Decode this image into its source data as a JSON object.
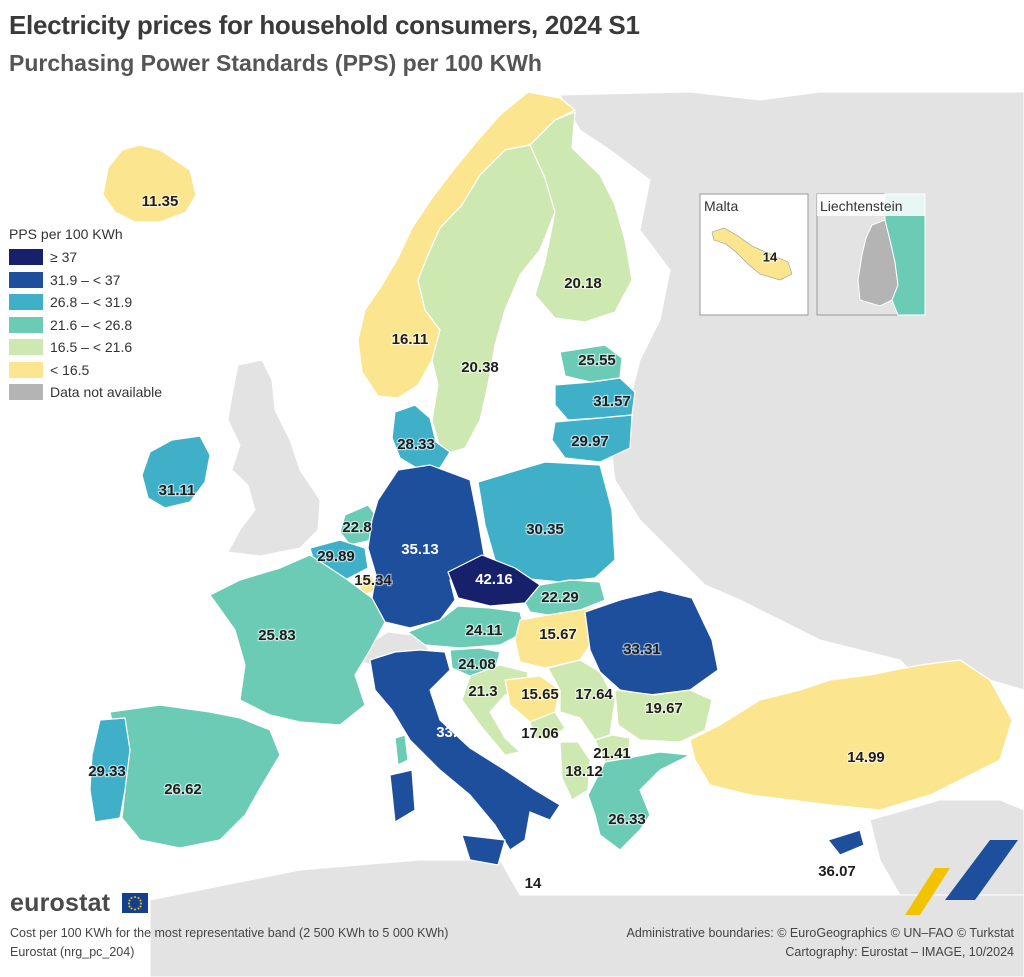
{
  "title": "Electricity prices for household consumers, 2024 S1",
  "subtitle": "Purchasing Power Standards (PPS) per 100 KWh",
  "legend": {
    "title": "PPS per 100 KWh",
    "items": [
      {
        "label": "≥ 37",
        "color": "#17216b"
      },
      {
        "label": "31.9 – < 37",
        "color": "#1e4f9c"
      },
      {
        "label": "26.8 – < 31.9",
        "color": "#40b0c8"
      },
      {
        "label": "21.6 – < 26.8",
        "color": "#6bcbb5"
      },
      {
        "label": "16.5 – < 21.6",
        "color": "#cde8b0"
      },
      {
        "label": "< 16.5",
        "color": "#fbe58f"
      },
      {
        "label": "Data not available",
        "color": "#b4b4b4"
      }
    ]
  },
  "colors": {
    "background": "#ffffff",
    "other_land": "#e3e3e3",
    "no_data": "#b4b4b4",
    "border": "#ffffff"
  },
  "regions": [
    {
      "id": "iceland",
      "value": "11.35",
      "class": "< 16.5"
    },
    {
      "id": "norway",
      "value": "16.11",
      "class": "< 16.5"
    },
    {
      "id": "sweden",
      "value": "20.38",
      "class": "16.5 – < 21.6"
    },
    {
      "id": "finland",
      "value": "20.18",
      "class": "16.5 – < 21.6"
    },
    {
      "id": "estonia",
      "value": "25.55",
      "class": "21.6 – < 26.8"
    },
    {
      "id": "latvia",
      "value": "31.57",
      "class": "26.8 – < 31.9"
    },
    {
      "id": "lithuania",
      "value": "29.97",
      "class": "26.8 – < 31.9"
    },
    {
      "id": "denmark",
      "value": "28.33",
      "class": "26.8 – < 31.9"
    },
    {
      "id": "ireland",
      "value": "31.11",
      "class": "26.8 – < 31.9"
    },
    {
      "id": "netherlands",
      "value": "22.8",
      "class": "21.6 – < 26.8"
    },
    {
      "id": "belgium",
      "value": "29.89",
      "class": "26.8 – < 31.9"
    },
    {
      "id": "luxembourg",
      "value": "15.34",
      "class": "< 16.5"
    },
    {
      "id": "germany",
      "value": "35.13",
      "class": "31.9 – < 37"
    },
    {
      "id": "poland",
      "value": "30.35",
      "class": "26.8 – < 31.9"
    },
    {
      "id": "czechia",
      "value": "42.16",
      "class": "≥ 37"
    },
    {
      "id": "slovakia",
      "value": "22.29",
      "class": "21.6 – < 26.8"
    },
    {
      "id": "austria",
      "value": "24.11",
      "class": "21.6 – < 26.8"
    },
    {
      "id": "hungary",
      "value": "15.67",
      "class": "< 16.5"
    },
    {
      "id": "romania",
      "value": "33.31",
      "class": "31.9 – < 37"
    },
    {
      "id": "slovenia",
      "value": "24.08",
      "class": "21.6 – < 26.8"
    },
    {
      "id": "croatia",
      "value": "21.3",
      "class": "16.5 – < 21.6"
    },
    {
      "id": "bosnia",
      "value": "15.65",
      "class": "< 16.5"
    },
    {
      "id": "serbia",
      "value": "17.64",
      "class": "16.5 – < 21.6"
    },
    {
      "id": "bulgaria",
      "value": "19.67",
      "class": "16.5 – < 21.6"
    },
    {
      "id": "montenegro",
      "value": "17.06",
      "class": "16.5 – < 21.6"
    },
    {
      "id": "north-macedonia",
      "value": "21.41",
      "class": "16.5 – < 21.6"
    },
    {
      "id": "albania",
      "value": "18.12",
      "class": "16.5 – < 21.6"
    },
    {
      "id": "greece",
      "value": "26.33",
      "class": "21.6 – < 26.8"
    },
    {
      "id": "turkey",
      "value": "14.99",
      "class": "< 16.5"
    },
    {
      "id": "france",
      "value": "25.83",
      "class": "21.6 – < 26.8"
    },
    {
      "id": "spain",
      "value": "26.62",
      "class": "21.6 – < 26.8"
    },
    {
      "id": "portugal",
      "value": "29.33",
      "class": "26.8 – < 31.9"
    },
    {
      "id": "italy",
      "value": "33.91",
      "class": "31.9 – < 37"
    },
    {
      "id": "malta-value",
      "value": "14",
      "class": "< 16.5"
    },
    {
      "id": "cyprus",
      "value": "36.07",
      "class": "31.9 – < 37"
    }
  ],
  "insets": {
    "malta": {
      "title": "Malta",
      "value": "14"
    },
    "liechtenstein": {
      "title": "Liechtenstein"
    }
  },
  "logo": "eurostat",
  "footer": {
    "note": "Cost per 100 KWh for the most representative band (2 500 KWh to 5 000 KWh)",
    "source": "Eurostat (nrg_pc_204)",
    "boundaries": "Administrative boundaries: © EuroGeographics © UN–FAO © Turkstat",
    "cartography": "Cartography: Eurostat – IMAGE, 10/2024"
  }
}
